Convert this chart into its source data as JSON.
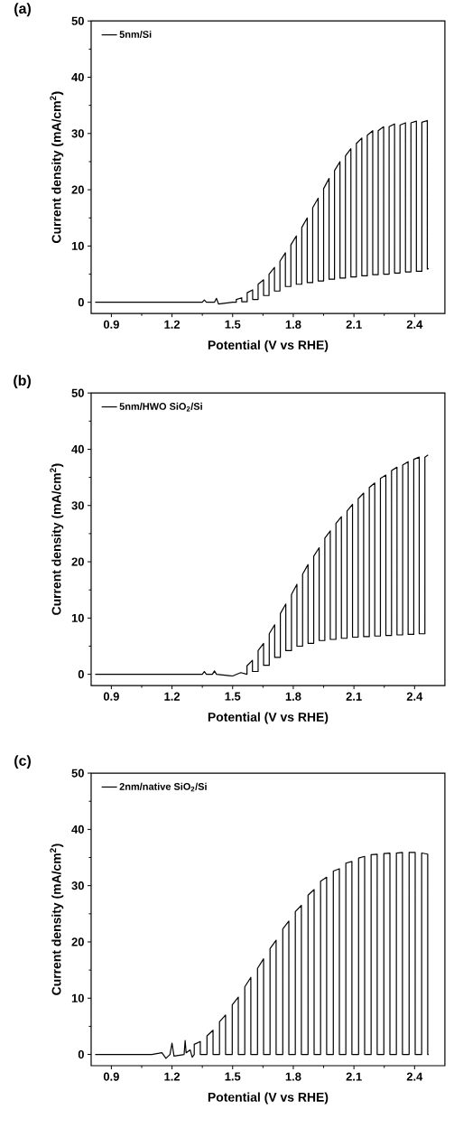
{
  "chart_data": [
    {
      "type": "line",
      "title": "(a)",
      "xlabel": "Potential (V vs RHE)",
      "ylabel": "Current density (mA/cm$^{2}$)",
      "xlim": [
        0.8,
        2.55
      ],
      "ylim": [
        -2,
        50
      ],
      "xticks": [
        0.9,
        1.2,
        1.5,
        1.8,
        2.1,
        2.4
      ],
      "yticks": [
        0,
        10,
        20,
        30,
        40,
        50
      ],
      "legend": "top left",
      "x": [
        0.82,
        1.35,
        1.36,
        1.37,
        1.41,
        1.42,
        1.43,
        1.5,
        1.518,
        1.518,
        1.545,
        1.545,
        1.572,
        1.572,
        1.599,
        1.599,
        1.626,
        1.626,
        1.653,
        1.653,
        1.68,
        1.68,
        1.707,
        1.707,
        1.734,
        1.734,
        1.761,
        1.761,
        1.788,
        1.788,
        1.815,
        1.815,
        1.842,
        1.842,
        1.869,
        1.869,
        1.896,
        1.896,
        1.923,
        1.923,
        1.95,
        1.95,
        1.977,
        1.977,
        2.004,
        2.004,
        2.031,
        2.031,
        2.058,
        2.058,
        2.085,
        2.085,
        2.112,
        2.112,
        2.139,
        2.139,
        2.166,
        2.166,
        2.193,
        2.193,
        2.22,
        2.22,
        2.247,
        2.247,
        2.274,
        2.274,
        2.301,
        2.301,
        2.328,
        2.328,
        2.355,
        2.355,
        2.382,
        2.382,
        2.409,
        2.409,
        2.436,
        2.436,
        2.463,
        2.463,
        2.47
      ],
      "series": [
        {
          "name": "5nm/Si",
          "color": "#000000",
          "values": [
            0,
            0,
            0.4,
            0,
            0,
            0.7,
            -0.3,
            0,
            0,
            0.5,
            0.8,
            0.1,
            0.1,
            1.7,
            2.2,
            0.5,
            0.5,
            3.2,
            4.0,
            1.2,
            1.2,
            5.0,
            6.2,
            2.0,
            2.0,
            7.3,
            8.8,
            2.8,
            2.8,
            10.2,
            11.8,
            3.2,
            3.2,
            13.3,
            15.0,
            3.5,
            3.5,
            16.8,
            18.5,
            3.8,
            3.8,
            20.2,
            22.0,
            4.1,
            4.1,
            23.4,
            25.0,
            4.3,
            4.3,
            26.0,
            27.3,
            4.5,
            4.5,
            28.2,
            29.2,
            4.7,
            4.7,
            29.7,
            30.5,
            4.9,
            4.9,
            30.5,
            31.2,
            5.0,
            5.0,
            31.2,
            31.7,
            5.2,
            5.2,
            31.5,
            31.9,
            5.4,
            5.4,
            31.9,
            32.2,
            5.5,
            5.5,
            32.0,
            32.3,
            5.9,
            6.0
          ]
        }
      ]
    },
    {
      "type": "line",
      "title": "(b)",
      "xlabel": "Potential (V vs RHE)",
      "ylabel": "Current density (mA/cm$^{2}$)",
      "xlim": [
        0.8,
        2.55
      ],
      "ylim": [
        -2,
        50
      ],
      "xticks": [
        0.9,
        1.2,
        1.5,
        1.8,
        2.1,
        2.4
      ],
      "yticks": [
        0,
        10,
        20,
        30,
        40,
        50
      ],
      "legend": "top left",
      "x": [
        0.82,
        1.35,
        1.36,
        1.37,
        1.4,
        1.41,
        1.42,
        1.5,
        1.54,
        1.571,
        1.571,
        1.598,
        1.598,
        1.626,
        1.626,
        1.653,
        1.653,
        1.681,
        1.681,
        1.708,
        1.708,
        1.736,
        1.736,
        1.763,
        1.763,
        1.791,
        1.791,
        1.818,
        1.818,
        1.846,
        1.846,
        1.873,
        1.873,
        1.901,
        1.901,
        1.928,
        1.928,
        1.956,
        1.956,
        1.983,
        1.983,
        2.011,
        2.011,
        2.038,
        2.038,
        2.066,
        2.066,
        2.093,
        2.093,
        2.121,
        2.121,
        2.148,
        2.148,
        2.176,
        2.176,
        2.203,
        2.203,
        2.231,
        2.231,
        2.258,
        2.258,
        2.286,
        2.286,
        2.313,
        2.313,
        2.341,
        2.341,
        2.368,
        2.368,
        2.396,
        2.396,
        2.423,
        2.423,
        2.451,
        2.451,
        2.467
      ],
      "series": [
        {
          "name": "5nm/HWO SiO$_{2}$/Si",
          "color": "#000000",
          "values": [
            0,
            0,
            0.5,
            0,
            0,
            0.6,
            0,
            -0.3,
            0.3,
            0,
            1.5,
            2.5,
            0.5,
            0.5,
            4.2,
            5.5,
            1.6,
            1.6,
            7.2,
            8.8,
            3.0,
            3.0,
            10.8,
            12.5,
            4.2,
            4.2,
            14.2,
            16.0,
            5.0,
            5.0,
            17.8,
            19.5,
            5.5,
            5.5,
            21.0,
            22.5,
            6.0,
            6.0,
            24.2,
            25.5,
            6.2,
            6.2,
            26.8,
            28.0,
            6.4,
            6.4,
            29.0,
            30.2,
            6.6,
            6.6,
            31.2,
            32.2,
            6.7,
            6.7,
            33.2,
            34.0,
            6.8,
            6.8,
            34.8,
            35.4,
            6.9,
            6.9,
            36.2,
            36.8,
            7.0,
            7.0,
            37.2,
            37.8,
            7.1,
            7.1,
            38.2,
            38.6,
            7.2,
            7.2,
            38.6,
            39.0
          ]
        }
      ]
    },
    {
      "type": "line",
      "title": "(c)",
      "xlabel": "Potential (V vs RHE)",
      "ylabel": "Current density (mA/cm$^{2}$)",
      "xlim": [
        0.8,
        2.55
      ],
      "ylim": [
        -2,
        50
      ],
      "xticks": [
        0.9,
        1.2,
        1.5,
        1.8,
        2.1,
        2.4
      ],
      "yticks": [
        0,
        10,
        20,
        30,
        40,
        50
      ],
      "legend": "top left",
      "x": [
        0.82,
        1.1,
        1.15,
        1.17,
        1.19,
        1.2,
        1.21,
        1.26,
        1.265,
        1.27,
        1.29,
        1.3,
        1.31,
        1.31,
        1.34,
        1.34,
        1.373,
        1.373,
        1.403,
        1.403,
        1.435,
        1.435,
        1.465,
        1.465,
        1.498,
        1.498,
        1.528,
        1.528,
        1.56,
        1.56,
        1.59,
        1.59,
        1.623,
        1.623,
        1.653,
        1.653,
        1.685,
        1.685,
        1.715,
        1.715,
        1.748,
        1.748,
        1.778,
        1.778,
        1.81,
        1.81,
        1.84,
        1.84,
        1.873,
        1.873,
        1.903,
        1.903,
        1.935,
        1.935,
        1.965,
        1.965,
        1.998,
        1.998,
        2.028,
        2.028,
        2.06,
        2.06,
        2.09,
        2.09,
        2.123,
        2.123,
        2.153,
        2.153,
        2.185,
        2.185,
        2.215,
        2.215,
        2.248,
        2.248,
        2.278,
        2.278,
        2.31,
        2.31,
        2.34,
        2.34,
        2.373,
        2.373,
        2.403,
        2.403,
        2.435,
        2.435,
        2.465,
        2.465,
        2.47
      ],
      "series": [
        {
          "name": "2nm/native SiO$_{2}$/Si",
          "color": "#000000",
          "values": [
            0,
            0,
            0.3,
            -0.7,
            0,
            2.0,
            -0.3,
            0,
            2.5,
            0.3,
            0.8,
            -0.5,
            0,
            1.8,
            2.3,
            0,
            0,
            3.3,
            4.3,
            0,
            0,
            5.8,
            7.0,
            0,
            0,
            8.8,
            10.2,
            0,
            0,
            12.0,
            13.7,
            0,
            0,
            15.3,
            17.0,
            0,
            0,
            18.8,
            20.3,
            0,
            0,
            22.3,
            23.7,
            0,
            0,
            25.4,
            26.5,
            0,
            0,
            28.3,
            29.3,
            0,
            0,
            30.8,
            31.5,
            0,
            0,
            32.6,
            33.0,
            0,
            0,
            34.0,
            34.3,
            0,
            0,
            34.9,
            35.2,
            0,
            0,
            35.5,
            35.6,
            0,
            0,
            35.7,
            35.8,
            0,
            0,
            35.8,
            35.9,
            0,
            0,
            35.9,
            35.9,
            0,
            0,
            35.8,
            35.6,
            0,
            0
          ]
        }
      ]
    }
  ]
}
